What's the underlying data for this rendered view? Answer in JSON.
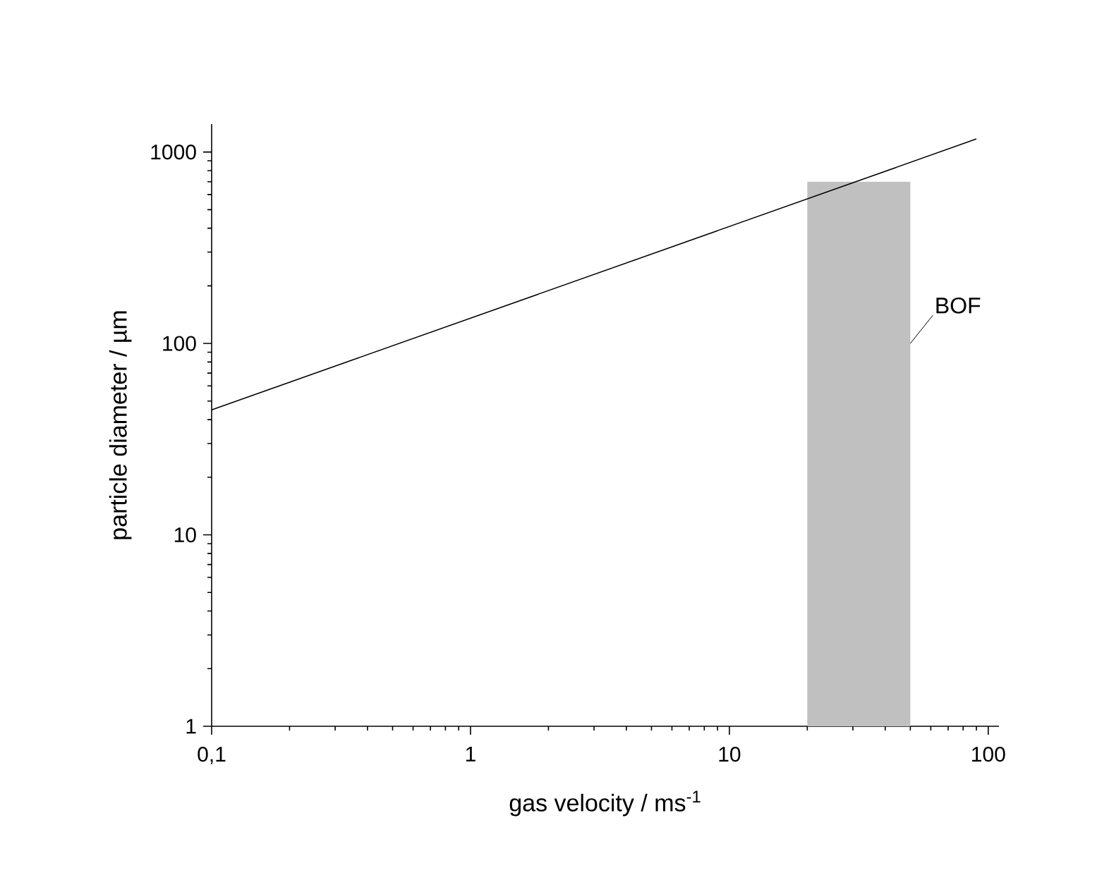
{
  "chart_data": {
    "type": "line",
    "xlabel": "gas velocity / ms$^{-1}$",
    "ylabel": "particle diameter / µm",
    "log": "xy",
    "xlim": [
      0.1,
      110
    ],
    "ylim": [
      1,
      1400
    ],
    "xticks": [
      {
        "value": 0.1,
        "label": "0,1"
      },
      1,
      10,
      100
    ],
    "yticks": [
      1,
      10,
      100,
      1000
    ],
    "series": [
      {
        "color": "#000000",
        "x": [
          0.1,
          90
        ],
        "values": [
          45,
          1170
        ]
      },
      {
        "type": "area",
        "color": "#c0c0c0",
        "x": [
          20,
          50
        ],
        "values": [
          700,
          700
        ]
      }
    ],
    "annotations": [
      {
        "text": "BOF",
        "x": 50,
        "y": 100
      }
    ],
    "marker": "none",
    "line_style": "solid"
  }
}
